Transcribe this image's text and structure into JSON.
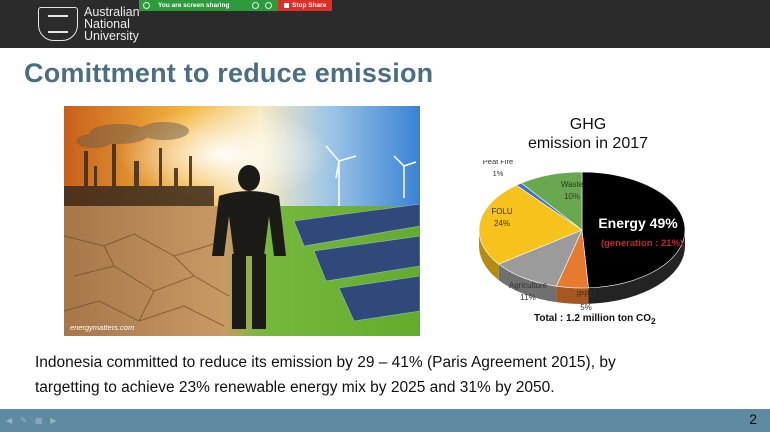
{
  "topbar": {
    "logo": {
      "line1": "Australian",
      "line2": "National",
      "line3": "University"
    },
    "sharing": {
      "status": "You are screen sharing",
      "stop_label": "Stop Share"
    }
  },
  "slide": {
    "title": "Comittment to reduce emission",
    "photo_credit": "energymatters.com",
    "body": {
      "line1": "Indonesia committed to reduce its emission by 29 – 41%  (Paris Agreement 2015), by",
      "line2": "targetting to achieve 23% renewable energy mix by 2025 and 31% by 2050."
    },
    "page_number": "2"
  },
  "chart_data": {
    "type": "pie",
    "title": [
      "GHG",
      "emission in 2017"
    ],
    "total_label": "Total : 1.2 million ton CO",
    "total_subscript": "2",
    "slices": [
      {
        "label": "Energy",
        "value": 49,
        "value_label": "Energy 49%",
        "color": "#000000",
        "sub_label": "(generation : 21%)",
        "sub_color": "#c0282a"
      },
      {
        "label": "IPPU",
        "value": 5,
        "value_label": "5%",
        "color": "#e67a2e"
      },
      {
        "label": "Agriculture",
        "value": 11,
        "value_label": "11%",
        "color": "#9b9b9b"
      },
      {
        "label": "FOLU",
        "value": 24,
        "value_label": "24%",
        "color": "#f7c21b"
      },
      {
        "label": "Peat Fire",
        "value": 1,
        "value_label": "1%",
        "color": "#4472c4"
      },
      {
        "label": "Waste",
        "value": 10,
        "value_label": "10%",
        "color": "#6aa84f"
      }
    ]
  }
}
